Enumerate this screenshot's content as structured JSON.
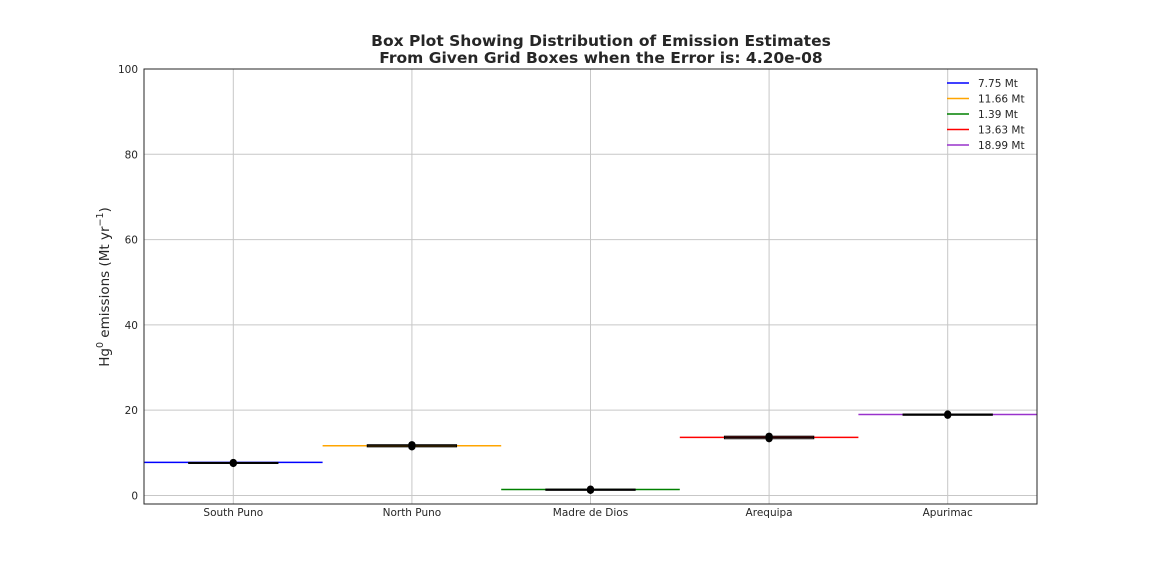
{
  "chart_data": {
    "type": "box",
    "title_lines": [
      "Box Plot Showing Distribution of Emission Estimates",
      "From Given Grid Boxes when the Error is: 4.20e-08"
    ],
    "xlabel": "",
    "ylabel": {
      "prefix": "Hg",
      "sup1": "0",
      "middle": " emissions (Mt yr",
      "sup2": "−1",
      "suffix": ")"
    },
    "ylim": [
      -2,
      100
    ],
    "yticks": [
      0,
      20,
      40,
      60,
      80,
      100
    ],
    "grid": true,
    "legend_position": "top-right",
    "categories": [
      "South Puno",
      "North Puno",
      "Madre de Dios",
      "Arequipa",
      "Apurimac"
    ],
    "series": [
      {
        "name": "7.75 Mt",
        "category": "South Puno",
        "value": 7.75,
        "color": "#0000ff"
      },
      {
        "name": "11.66 Mt",
        "category": "North Puno",
        "value": 11.66,
        "color": "#ffa500"
      },
      {
        "name": "1.39 Mt",
        "category": "Madre de Dios",
        "value": 1.39,
        "color": "#008000"
      },
      {
        "name": "13.63 Mt",
        "category": "Arequipa",
        "value": 13.63,
        "color": "#ff0000"
      },
      {
        "name": "18.99 Mt",
        "category": "Apurimac",
        "value": 18.99,
        "color": "#9932cc"
      }
    ],
    "box_summaries": [
      {
        "category": "South Puno",
        "median": 7.6,
        "q1": 7.5,
        "q3": 7.75
      },
      {
        "category": "North Puno",
        "median": 11.66,
        "q1": 11.4,
        "q3": 11.9
      },
      {
        "category": "Madre de Dios",
        "median": 1.39,
        "q1": 1.2,
        "q3": 1.5
      },
      {
        "category": "Arequipa",
        "median": 13.63,
        "q1": 13.3,
        "q3": 13.9
      },
      {
        "category": "Apurimac",
        "median": 18.99,
        "q1": 18.8,
        "q3": 19.1
      }
    ]
  }
}
